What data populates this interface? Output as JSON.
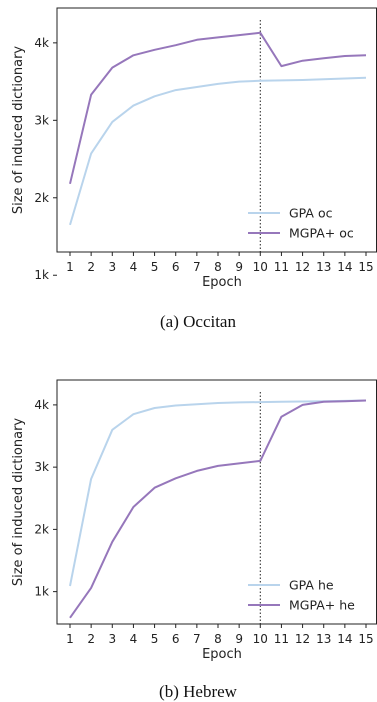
{
  "chart_data": [
    {
      "type": "line",
      "caption": "(a) Occitan",
      "xlabel": "Epoch",
      "ylabel": "Size of induced dictionary",
      "x": [
        1,
        2,
        3,
        4,
        5,
        6,
        7,
        8,
        9,
        10,
        11,
        12,
        13,
        14,
        15
      ],
      "ylim": [
        1300,
        4450
      ],
      "yticks": [
        1000,
        2000,
        3000,
        4000
      ],
      "ytick_labels": [
        "1k",
        "2k",
        "3k",
        "4k"
      ],
      "vline_x": 10,
      "legend_position": "lower-right",
      "series": [
        {
          "name": "GPA oc",
          "color": "#b9d4ec",
          "values": [
            1650,
            2570,
            2980,
            3190,
            3310,
            3390,
            3430,
            3470,
            3500,
            3510,
            3515,
            3520,
            3530,
            3540,
            3550
          ]
        },
        {
          "name": "MGPA+ oc",
          "color": "#9677bb",
          "values": [
            2180,
            3330,
            3680,
            3840,
            3910,
            3970,
            4040,
            4070,
            4100,
            4130,
            3700,
            3770,
            3800,
            3830,
            3840
          ]
        }
      ]
    },
    {
      "type": "line",
      "caption": "(b) Hebrew",
      "xlabel": "Epoch",
      "ylabel": "Size of induced dictionary",
      "x": [
        1,
        2,
        3,
        4,
        5,
        6,
        7,
        8,
        9,
        10,
        11,
        12,
        13,
        14,
        15
      ],
      "ylim": [
        480,
        4400
      ],
      "yticks": [
        1000,
        2000,
        3000,
        4000
      ],
      "ytick_labels": [
        "1k",
        "2k",
        "3k",
        "4k"
      ],
      "vline_x": 10,
      "legend_position": "lower-right",
      "series": [
        {
          "name": "GPA he",
          "color": "#b9d4ec",
          "values": [
            1090,
            2810,
            3600,
            3850,
            3950,
            3990,
            4010,
            4030,
            4040,
            4045,
            4050,
            4055,
            4060,
            4065,
            4070
          ]
        },
        {
          "name": "MGPA+ he",
          "color": "#9677bb",
          "values": [
            580,
            1060,
            1800,
            2360,
            2670,
            2820,
            2940,
            3020,
            3060,
            3100,
            3810,
            4000,
            4050,
            4060,
            4070
          ]
        }
      ]
    }
  ]
}
